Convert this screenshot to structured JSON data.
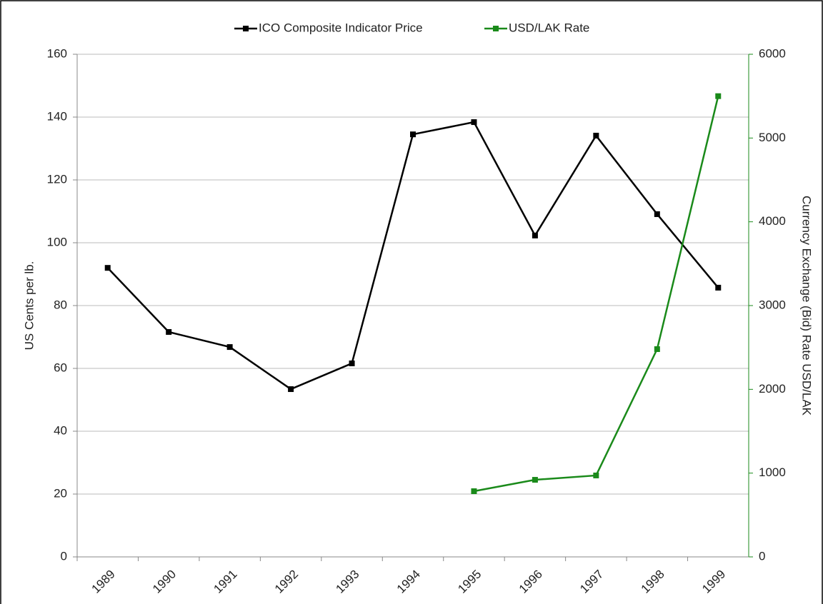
{
  "chart_data": {
    "type": "line",
    "categories": [
      "1989",
      "1990",
      "1991",
      "1992",
      "1993",
      "1994",
      "1995",
      "1996",
      "1997",
      "1998",
      "1999"
    ],
    "series": [
      {
        "name": "ICO Composite Indicator Price",
        "color": "#000000",
        "values": [
          92,
          71.6,
          66.8,
          53.4,
          61.6,
          134.5,
          138.4,
          102.3,
          134.1,
          109.1,
          85.7
        ]
      },
      {
        "name": "USD/LAK Rate",
        "color": "#1a8a1a",
        "axis": "y2",
        "values": [
          null,
          null,
          null,
          null,
          null,
          null,
          784,
          920,
          972,
          2480,
          5500
        ]
      }
    ],
    "ylabel": "US Cents per lb.",
    "y2label": "Currency Exchange (Bid) Rate USD/LAK",
    "ylim": [
      0,
      160
    ],
    "yticks": [
      0,
      20,
      40,
      60,
      80,
      100,
      120,
      140,
      160
    ],
    "y2lim": [
      0,
      6000
    ],
    "y2ticks": [
      0,
      1000,
      2000,
      3000,
      4000,
      5000,
      6000
    ],
    "grid": true,
    "legend": "top"
  }
}
